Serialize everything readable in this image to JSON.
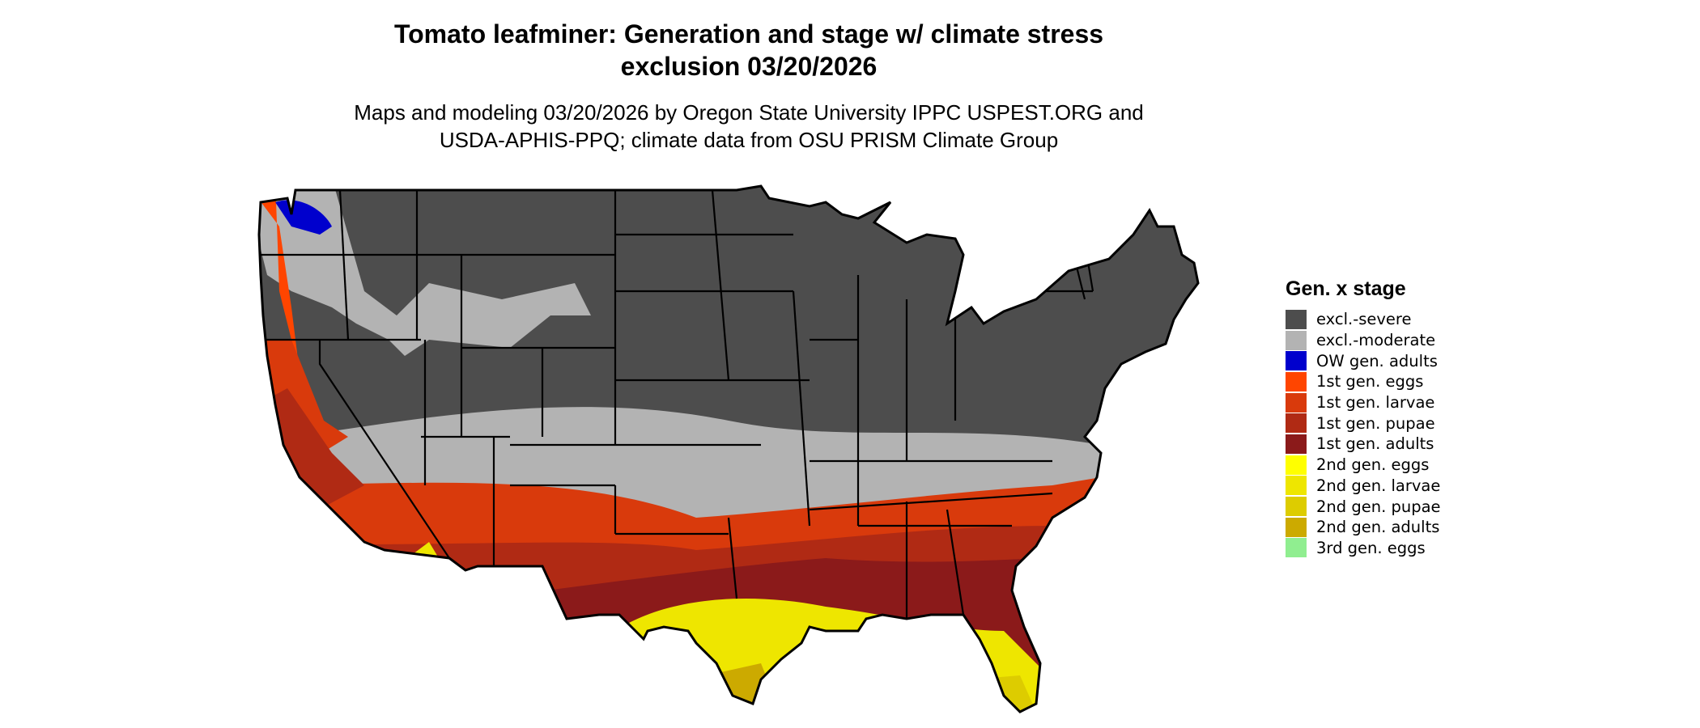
{
  "title": {
    "line1": "Tomato leafminer: Generation and stage w/ climate stress",
    "line2": "exclusion 03/20/2026"
  },
  "subtitle": {
    "line1": "Maps and modeling 03/20/2026 by Oregon State University IPPC USPEST.ORG and",
    "line2": "USDA-APHIS-PPQ; climate data from OSU PRISM Climate Group"
  },
  "legend": {
    "title": "Gen. x stage",
    "items": [
      {
        "label": "excl.-severe",
        "color": "#4d4d4d"
      },
      {
        "label": "excl.-moderate",
        "color": "#b3b3b3"
      },
      {
        "label": "OW gen. adults",
        "color": "#0000cd"
      },
      {
        "label": "1st gen. eggs",
        "color": "#ff4500"
      },
      {
        "label": "1st gen. larvae",
        "color": "#d93a0c"
      },
      {
        "label": "1st gen. pupae",
        "color": "#b02a14"
      },
      {
        "label": "1st gen. adults",
        "color": "#8b1a1a"
      },
      {
        "label": "2nd gen. eggs",
        "color": "#ffff00"
      },
      {
        "label": "2nd gen. larvae",
        "color": "#eee600"
      },
      {
        "label": "2nd gen. pupae",
        "color": "#ddcc00"
      },
      {
        "label": "2nd gen. adults",
        "color": "#ccaa00"
      },
      {
        "label": "3rd gen. eggs",
        "color": "#90ee90"
      }
    ]
  }
}
